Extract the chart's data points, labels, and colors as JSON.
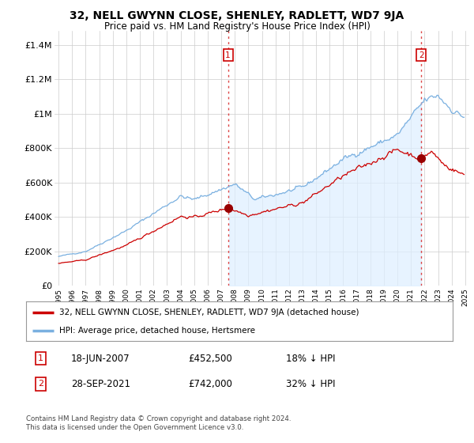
{
  "title": "32, NELL GWYNN CLOSE, SHENLEY, RADLETT, WD7 9JA",
  "subtitle": "Price paid vs. HM Land Registry's House Price Index (HPI)",
  "background_color": "#ffffff",
  "chart_bg_color": "#ffffff",
  "fill_color": "#ddeeff",
  "grid_color": "#cccccc",
  "hpi_color": "#7ab0e0",
  "price_color": "#cc0000",
  "dot_color": "#990000",
  "dashed_line_color": "#dd4444",
  "transaction1_date": "18-JUN-2007",
  "transaction1_price": 452500,
  "transaction1_label": "18% ↓ HPI",
  "transaction2_date": "28-SEP-2021",
  "transaction2_price": 742000,
  "transaction2_label": "32% ↓ HPI",
  "legend_property": "32, NELL GWYNN CLOSE, SHENLEY, RADLETT, WD7 9JA (detached house)",
  "legend_hpi": "HPI: Average price, detached house, Hertsmere",
  "footer1": "Contains HM Land Registry data © Crown copyright and database right 2024.",
  "footer2": "This data is licensed under the Open Government Licence v3.0.",
  "yticks": [
    0,
    200000,
    400000,
    600000,
    800000,
    1000000,
    1200000,
    1400000
  ],
  "ytick_labels": [
    "£0",
    "£200K",
    "£400K",
    "£600K",
    "£800K",
    "£1M",
    "£1.2M",
    "£1.4M"
  ],
  "xlim_start": 1994.7,
  "xlim_end": 2025.3,
  "ylim_top": 1480000
}
